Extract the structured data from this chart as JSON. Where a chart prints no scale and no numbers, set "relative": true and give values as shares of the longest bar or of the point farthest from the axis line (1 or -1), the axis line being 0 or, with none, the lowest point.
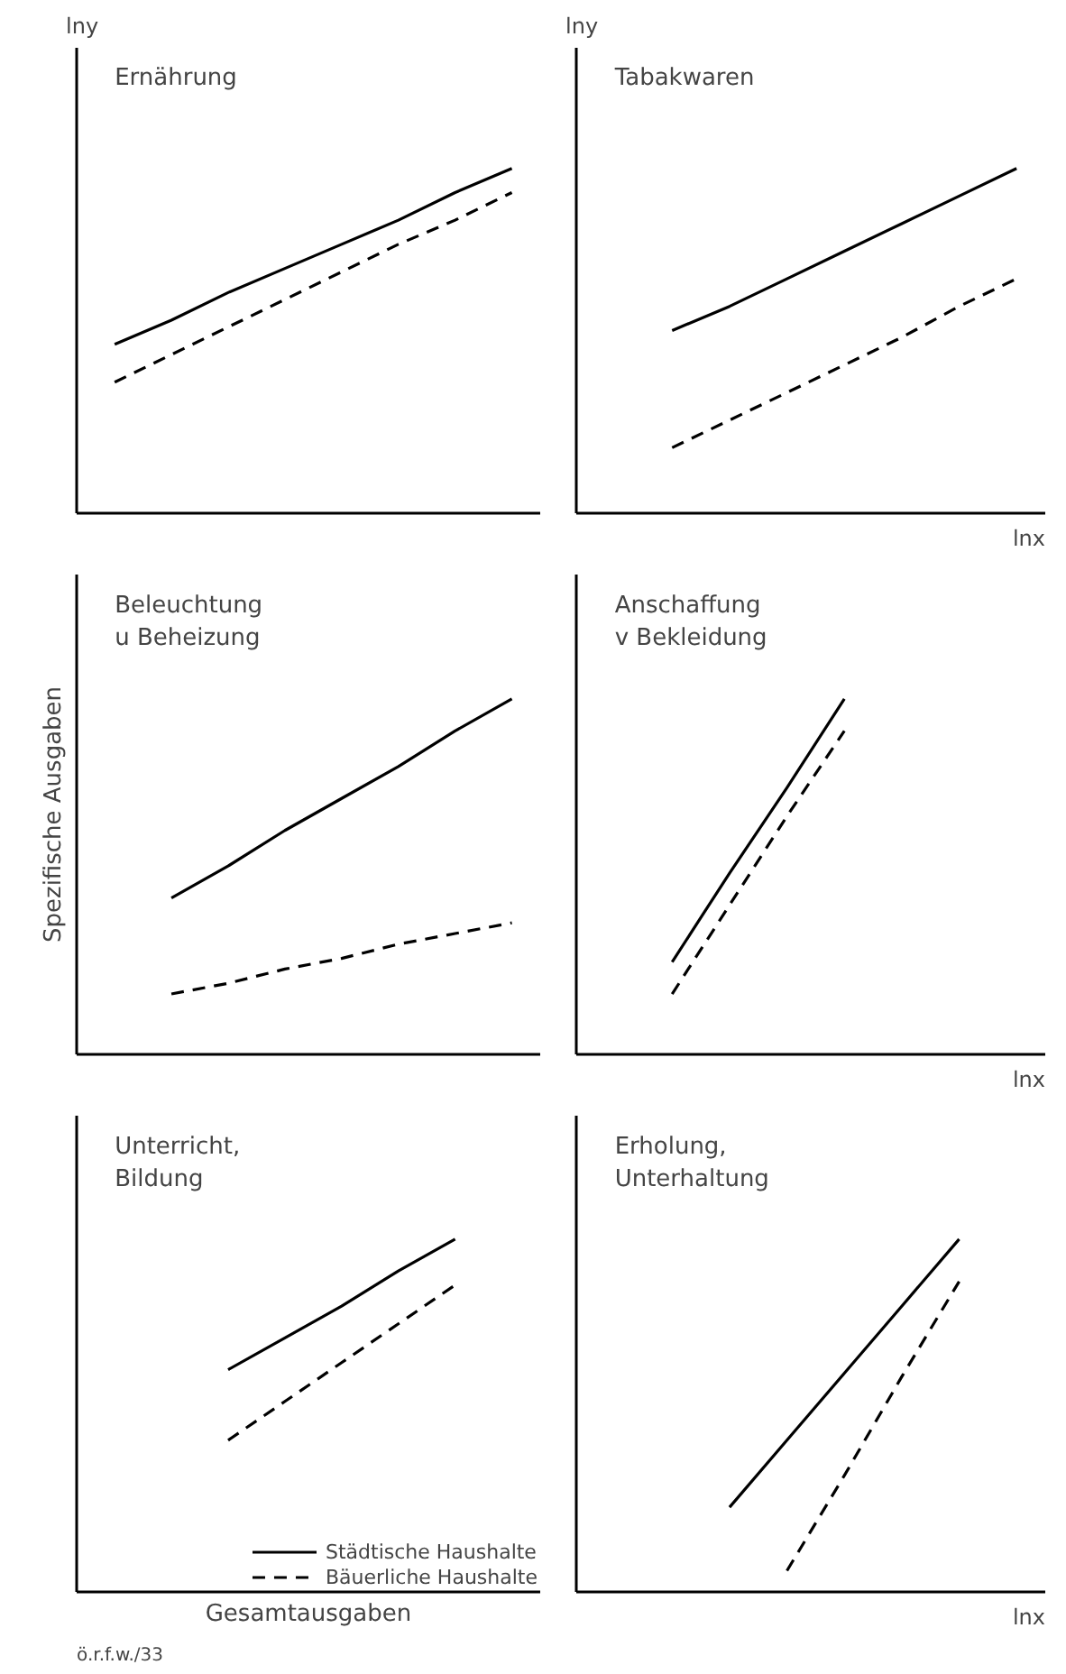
{
  "chart_data": [
    {
      "type": "line",
      "title": "Ernährung",
      "ylabel": "lny",
      "relative": true,
      "categories": [
        null,
        null,
        null,
        null,
        null,
        null,
        null,
        null
      ],
      "series": [
        {
          "color": "#000000",
          "line_style": "solid",
          "values": [
            0.49,
            0.56,
            0.64,
            0.71,
            0.78,
            0.85,
            0.93,
            1.0
          ]
        },
        {
          "color": "#000000",
          "line_style": "dashed",
          "values": [
            0.38,
            0.46,
            0.54,
            0.62,
            0.7,
            0.78,
            0.85,
            0.93
          ]
        }
      ]
    },
    {
      "type": "line",
      "title": "Tabakwaren",
      "ylabel": "lny",
      "xlabel": "lnx",
      "relative": true,
      "categories": [
        null,
        null,
        null,
        null,
        null,
        null,
        null,
        null
      ],
      "series": [
        {
          "color": "#000000",
          "line_style": "solid",
          "values": [
            null,
            0.53,
            0.6,
            0.68,
            0.76,
            0.84,
            0.92,
            1.0
          ]
        },
        {
          "color": "#000000",
          "line_style": "dashed",
          "values": [
            null,
            0.19,
            0.27,
            0.35,
            0.43,
            0.51,
            0.6,
            0.68
          ]
        }
      ]
    },
    {
      "type": "line",
      "title": "Beleuchtung u Beheizung",
      "ylabel": "Spezifische Ausgaben",
      "relative": true,
      "categories": [
        null,
        null,
        null,
        null,
        null,
        null,
        null,
        null
      ],
      "series": [
        {
          "color": "#000000",
          "line_style": "solid",
          "values": [
            null,
            0.44,
            0.53,
            0.63,
            0.72,
            0.81,
            0.91,
            1.0
          ]
        },
        {
          "color": "#000000",
          "line_style": "dashed",
          "values": [
            null,
            0.17,
            0.2,
            0.24,
            0.27,
            0.31,
            0.34,
            0.37
          ]
        }
      ]
    },
    {
      "type": "line",
      "title": "Anschaffung v Bekleidung",
      "xlabel": "lnx",
      "relative": true,
      "categories": [
        null,
        null,
        null,
        null,
        null,
        null,
        null,
        null
      ],
      "series": [
        {
          "color": "#000000",
          "line_style": "solid",
          "values": [
            null,
            0.26,
            0.51,
            0.75,
            1.0,
            null,
            null,
            null
          ]
        },
        {
          "color": "#000000",
          "line_style": "dashed",
          "values": [
            null,
            0.17,
            0.42,
            0.67,
            0.91,
            null,
            null,
            null
          ]
        }
      ]
    },
    {
      "type": "line",
      "title": "Unterricht, Bildung",
      "xlabel": "Gesamtausgaben",
      "relative": true,
      "legend": "bottom right",
      "categories": [
        null,
        null,
        null,
        null,
        null,
        null,
        null,
        null
      ],
      "annotations": [
        "ö.r.f.w./33"
      ],
      "series": [
        {
          "name": "Städtische Haushalte",
          "color": "#000000",
          "line_style": "solid",
          "values": [
            null,
            null,
            0.63,
            0.72,
            0.81,
            0.91,
            1.0,
            null
          ]
        },
        {
          "name": "Bäuerliche Haushalte",
          "color": "#000000",
          "line_style": "dashed",
          "values": [
            null,
            null,
            0.43,
            0.54,
            0.65,
            0.76,
            0.87,
            null
          ]
        }
      ]
    },
    {
      "type": "line",
      "title": "Erholung, Unterhaltung",
      "xlabel": "lnx",
      "relative": true,
      "categories": [
        null,
        null,
        null,
        null,
        null,
        null,
        null,
        null
      ],
      "series": [
        {
          "color": "#000000",
          "line_style": "solid",
          "values": [
            null,
            null,
            0.24,
            0.43,
            0.62,
            0.81,
            1.0,
            null
          ]
        },
        {
          "color": "#000000",
          "line_style": "dashed",
          "values": [
            null,
            null,
            null,
            0.06,
            0.33,
            0.61,
            0.88,
            null
          ]
        }
      ]
    }
  ]
}
